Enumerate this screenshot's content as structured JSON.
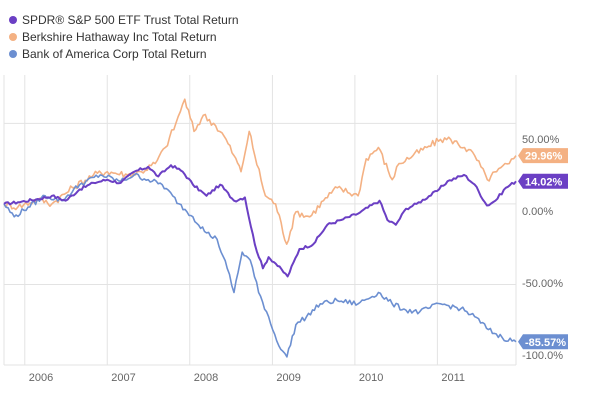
{
  "chart_data": {
    "type": "line",
    "title": "",
    "xlabel": "",
    "ylabel": "",
    "x_range": [
      "2005-10-01",
      "2011-12-15"
    ],
    "xlim_start_label": "2005-10-01",
    "ylim": [
      -100,
      80
    ],
    "grid": {
      "horizontal": true,
      "vertical": true
    },
    "legend_position": "top-left",
    "x_ticks": [
      {
        "date": "2006-01-01",
        "label": "2006"
      },
      {
        "date": "2007-01-01",
        "label": "2007"
      },
      {
        "date": "2008-01-01",
        "label": "2008"
      },
      {
        "date": "2009-01-01",
        "label": "2009"
      },
      {
        "date": "2010-01-01",
        "label": "2010"
      },
      {
        "date": "2011-01-01",
        "label": "2011"
      }
    ],
    "y_ticks": [
      {
        "value": 50,
        "label": "50.00%"
      },
      {
        "value": 0,
        "label": "0.00%"
      },
      {
        "value": -50,
        "label": "-50.00%"
      },
      {
        "value": -100,
        "label": "-100.0%"
      }
    ],
    "series": [
      {
        "name": "SPDR® S&P 500 ETF Trust Total Return",
        "color": "#6b3fc4",
        "end_label": "14.02%",
        "points": [
          [
            "2005-10-01",
            0
          ],
          [
            "2005-12-01",
            1
          ],
          [
            "2006-03-01",
            3
          ],
          [
            "2006-05-01",
            5
          ],
          [
            "2006-07-01",
            2
          ],
          [
            "2006-09-01",
            9
          ],
          [
            "2006-11-01",
            13
          ],
          [
            "2007-01-01",
            15
          ],
          [
            "2007-03-01",
            13
          ],
          [
            "2007-05-01",
            20
          ],
          [
            "2007-07-01",
            23
          ],
          [
            "2007-08-15",
            17
          ],
          [
            "2007-10-10",
            24
          ],
          [
            "2007-12-01",
            20
          ],
          [
            "2008-01-15",
            12
          ],
          [
            "2008-03-15",
            5
          ],
          [
            "2008-05-15",
            12
          ],
          [
            "2008-07-15",
            2
          ],
          [
            "2008-09-01",
            4
          ],
          [
            "2008-10-15",
            -25
          ],
          [
            "2008-11-20",
            -40
          ],
          [
            "2008-12-15",
            -33
          ],
          [
            "2009-01-15",
            -37
          ],
          [
            "2009-03-09",
            -45
          ],
          [
            "2009-05-01",
            -28
          ],
          [
            "2009-07-01",
            -25
          ],
          [
            "2009-09-01",
            -13
          ],
          [
            "2009-11-01",
            -10
          ],
          [
            "2010-01-15",
            -6
          ],
          [
            "2010-04-20",
            2
          ],
          [
            "2010-05-25",
            -10
          ],
          [
            "2010-07-01",
            -13
          ],
          [
            "2010-08-15",
            -3
          ],
          [
            "2010-10-01",
            0
          ],
          [
            "2010-12-31",
            8
          ],
          [
            "2011-02-15",
            14
          ],
          [
            "2011-04-29",
            18
          ],
          [
            "2011-06-15",
            12
          ],
          [
            "2011-08-08",
            -1
          ],
          [
            "2011-09-15",
            2
          ],
          [
            "2011-10-31",
            10
          ],
          [
            "2011-12-15",
            14.02
          ]
        ]
      },
      {
        "name": "Berkshire Hathaway Inc Total Return",
        "color": "#f4b183",
        "end_label": "29.96%",
        "points": [
          [
            "2005-10-01",
            0
          ],
          [
            "2005-12-01",
            -2
          ],
          [
            "2006-03-01",
            3
          ],
          [
            "2006-05-01",
            0
          ],
          [
            "2006-08-01",
            10
          ],
          [
            "2006-11-01",
            18
          ],
          [
            "2007-01-01",
            20
          ],
          [
            "2007-04-01",
            18
          ],
          [
            "2007-06-01",
            20
          ],
          [
            "2007-08-01",
            25
          ],
          [
            "2007-09-15",
            35
          ],
          [
            "2007-11-01",
            50
          ],
          [
            "2007-12-10",
            65
          ],
          [
            "2008-01-20",
            45
          ],
          [
            "2008-03-01",
            55
          ],
          [
            "2008-04-15",
            50
          ],
          [
            "2008-06-01",
            42
          ],
          [
            "2008-07-15",
            30
          ],
          [
            "2008-08-15",
            20
          ],
          [
            "2008-09-20",
            45
          ],
          [
            "2008-10-15",
            30
          ],
          [
            "2008-12-01",
            5
          ],
          [
            "2009-01-15",
            0
          ],
          [
            "2009-03-05",
            -25
          ],
          [
            "2009-04-15",
            -5
          ],
          [
            "2009-06-15",
            -8
          ],
          [
            "2009-08-15",
            2
          ],
          [
            "2009-10-15",
            10
          ],
          [
            "2010-01-15",
            5
          ],
          [
            "2010-02-20",
            28
          ],
          [
            "2010-04-15",
            35
          ],
          [
            "2010-06-15",
            15
          ],
          [
            "2010-07-15",
            25
          ],
          [
            "2010-09-15",
            30
          ],
          [
            "2010-11-15",
            35
          ],
          [
            "2011-01-15",
            40
          ],
          [
            "2011-03-01",
            40
          ],
          [
            "2011-05-01",
            35
          ],
          [
            "2011-06-15",
            30
          ],
          [
            "2011-08-10",
            15
          ],
          [
            "2011-09-20",
            20
          ],
          [
            "2011-11-15",
            25
          ],
          [
            "2011-12-15",
            29.96
          ]
        ]
      },
      {
        "name": "Bank of America Corp Total Return",
        "color": "#6c8fd1",
        "end_label": "-85.57%",
        "points": [
          [
            "2005-10-01",
            0
          ],
          [
            "2005-11-15",
            -8
          ],
          [
            "2006-01-15",
            -2
          ],
          [
            "2006-04-01",
            5
          ],
          [
            "2006-06-15",
            2
          ],
          [
            "2006-09-01",
            12
          ],
          [
            "2006-12-01",
            18
          ],
          [
            "2007-03-01",
            14
          ],
          [
            "2007-05-01",
            18
          ],
          [
            "2007-07-01",
            15
          ],
          [
            "2007-09-01",
            12
          ],
          [
            "2007-11-15",
            0
          ],
          [
            "2008-01-15",
            -8
          ],
          [
            "2008-03-15",
            -18
          ],
          [
            "2008-05-01",
            -22
          ],
          [
            "2008-06-15",
            -40
          ],
          [
            "2008-07-15",
            -55
          ],
          [
            "2008-08-20",
            -30
          ],
          [
            "2008-09-25",
            -35
          ],
          [
            "2008-11-01",
            -55
          ],
          [
            "2008-12-15",
            -70
          ],
          [
            "2009-01-20",
            -85
          ],
          [
            "2009-03-06",
            -95
          ],
          [
            "2009-04-15",
            -75
          ],
          [
            "2009-06-01",
            -70
          ],
          [
            "2009-08-01",
            -62
          ],
          [
            "2009-10-15",
            -60
          ],
          [
            "2010-01-15",
            -62
          ],
          [
            "2010-04-15",
            -55
          ],
          [
            "2010-06-15",
            -62
          ],
          [
            "2010-08-15",
            -66
          ],
          [
            "2010-10-15",
            -67
          ],
          [
            "2011-01-15",
            -62
          ],
          [
            "2011-04-15",
            -65
          ],
          [
            "2011-06-15",
            -70
          ],
          [
            "2011-08-15",
            -78
          ],
          [
            "2011-10-15",
            -83
          ],
          [
            "2011-12-15",
            -85.57
          ]
        ]
      }
    ]
  }
}
